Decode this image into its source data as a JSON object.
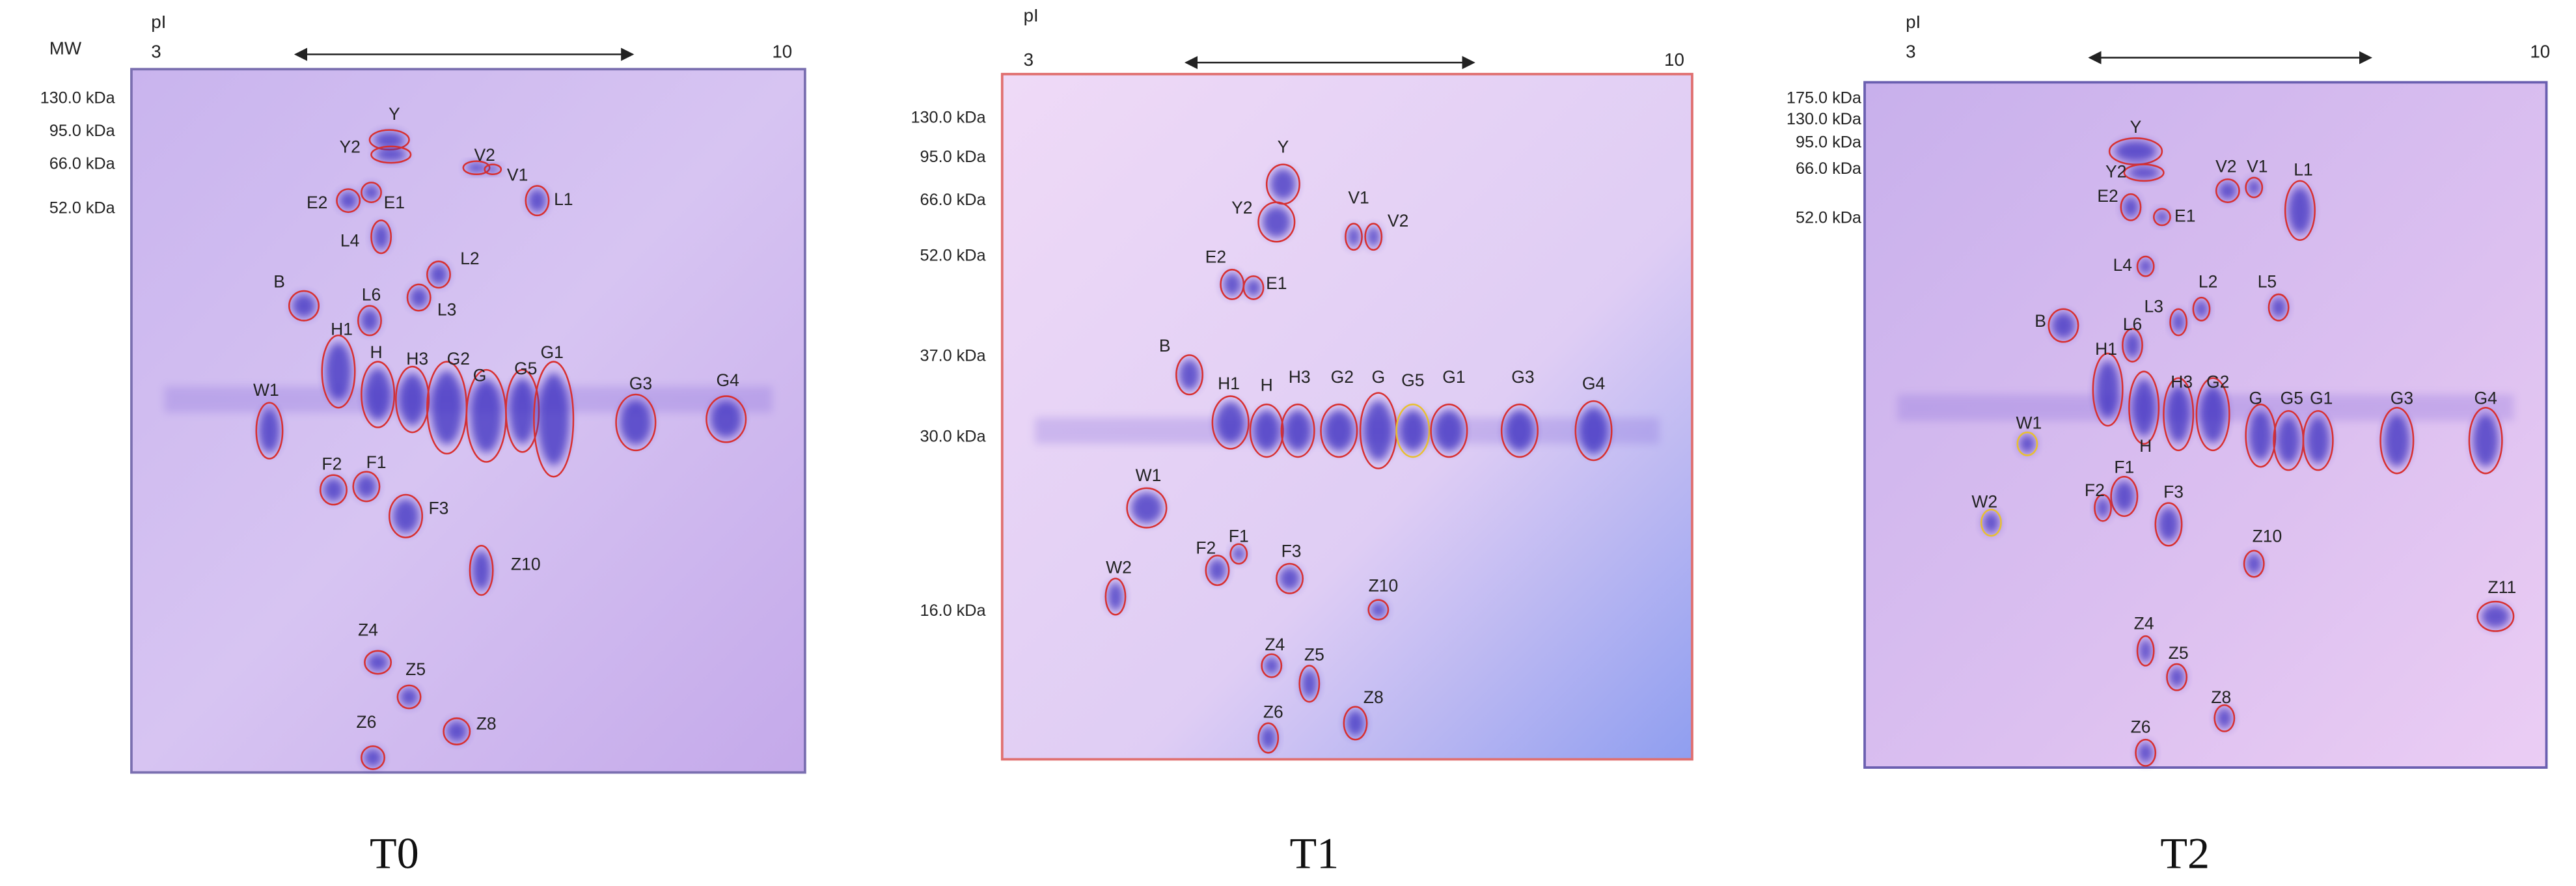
{
  "panels": [
    {
      "caption": "T0",
      "mw_heading": "MW",
      "pi_heading": "pI",
      "pi_start": "3",
      "pi_end": "10",
      "mw_markers": [
        "130.0 kDa",
        "95.0 kDa",
        "66.0 kDa",
        "52.0 kDa"
      ],
      "spots": [
        "Y",
        "Y2",
        "V2",
        "V1",
        "L1",
        "E2",
        "E1",
        "L4",
        "L2",
        "L3",
        "B",
        "L6",
        "H1",
        "H",
        "H3",
        "G2",
        "G",
        "G5",
        "G1",
        "G3",
        "G4",
        "W1",
        "F2",
        "F1",
        "F3",
        "Z10",
        "Z4",
        "Z5",
        "Z6",
        "Z8"
      ]
    },
    {
      "caption": "T1",
      "pi_heading": "pI",
      "pi_start": "3",
      "pi_end": "10",
      "mw_markers": [
        "130.0 kDa",
        "95.0 kDa",
        "66.0 kDa",
        "52.0 kDa",
        "37.0 kDa",
        "30.0 kDa",
        "16.0 kDa"
      ],
      "spots": [
        "Y",
        "Y2",
        "V1",
        "V2",
        "E2",
        "E1",
        "B",
        "H1",
        "H",
        "H3",
        "G2",
        "G",
        "G5",
        "G1",
        "G3",
        "G4",
        "W1",
        "F2",
        "F1",
        "F3",
        "W2",
        "Z10",
        "Z4",
        "Z5",
        "Z6",
        "Z8"
      ]
    },
    {
      "caption": "T2",
      "pi_heading": "pI",
      "pi_start": "3",
      "pi_end": "10",
      "mw_markers": [
        "175.0 kDa",
        "130.0 kDa",
        "95.0 kDa",
        "66.0 kDa",
        "52.0 kDa"
      ],
      "spots": [
        "Y",
        "Y2",
        "V2",
        "V1",
        "L1",
        "E2",
        "E1",
        "L4",
        "L2",
        "L5",
        "L3",
        "B",
        "L6",
        "H1",
        "H",
        "H3",
        "G2",
        "G",
        "G5",
        "G1",
        "G3",
        "G4",
        "W1",
        "F1",
        "F2",
        "F3",
        "W2",
        "Z10",
        "Z11",
        "Z4",
        "Z5",
        "Z8",
        "Z6"
      ]
    }
  ]
}
